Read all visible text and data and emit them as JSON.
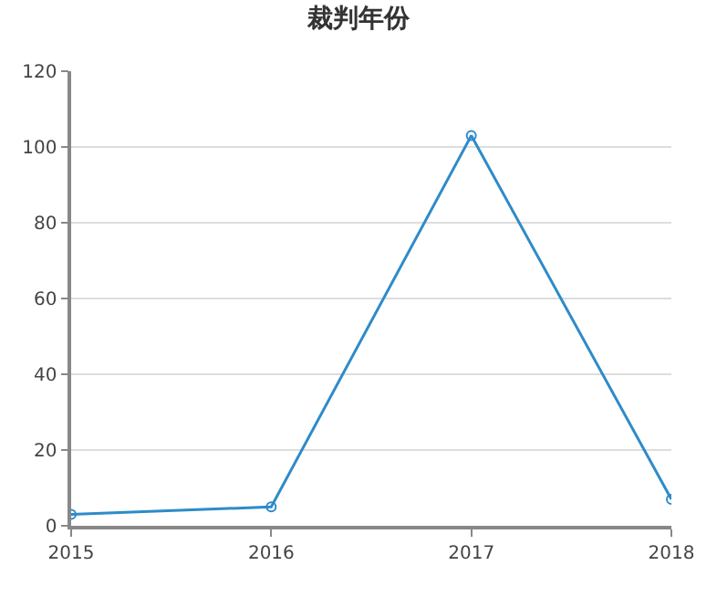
{
  "chart_data": {
    "type": "line",
    "title": "裁判年份",
    "x": [
      2015,
      2016,
      2017,
      2018
    ],
    "series": [
      {
        "color": "#2e8bc9",
        "values": [
          3,
          5,
          103,
          7
        ]
      }
    ],
    "xlim": [
      2015,
      2018
    ],
    "xticks": [
      2015,
      2016,
      2017,
      2018
    ],
    "ylim": [
      0,
      120
    ],
    "yticks": [
      0,
      20,
      40,
      60,
      80,
      100,
      120
    ],
    "grid": "y",
    "marker": "circle",
    "line_style": "solid"
  }
}
